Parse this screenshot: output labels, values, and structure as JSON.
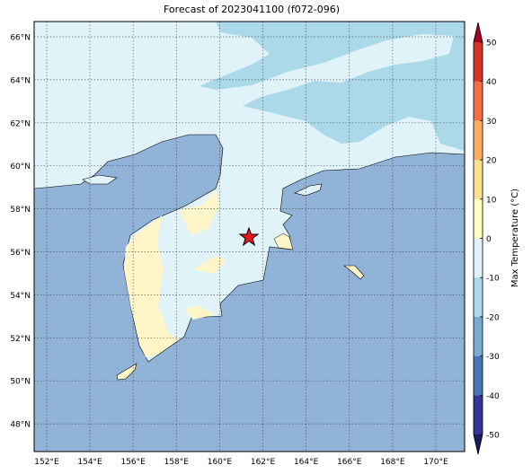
{
  "title": "Forecast of 2023041100 (f072-096)",
  "map": {
    "lat_ticks": [
      {
        "value": 48,
        "label": "48°N"
      },
      {
        "value": 50,
        "label": "50°N"
      },
      {
        "value": 52,
        "label": "52°N"
      },
      {
        "value": 54,
        "label": "54°N"
      },
      {
        "value": 56,
        "label": "56°N"
      },
      {
        "value": 58,
        "label": "58°N"
      },
      {
        "value": 60,
        "label": "60°N"
      },
      {
        "value": 62,
        "label": "62°N"
      },
      {
        "value": 64,
        "label": "64°N"
      },
      {
        "value": 66,
        "label": "66°N"
      }
    ],
    "lon_ticks": [
      {
        "value": 152,
        "label": "152°E"
      },
      {
        "value": 154,
        "label": "154°E"
      },
      {
        "value": 156,
        "label": "156°E"
      },
      {
        "value": 158,
        "label": "158°E"
      },
      {
        "value": 160,
        "label": "160°E"
      },
      {
        "value": 162,
        "label": "162°E"
      },
      {
        "value": 164,
        "label": "164°E"
      },
      {
        "value": 166,
        "label": "166°E"
      },
      {
        "value": 168,
        "label": "168°E"
      },
      {
        "value": 170,
        "label": "170°E"
      }
    ]
  },
  "colorbar": {
    "label": "Max Temperature (°C)",
    "ticks": [
      -50,
      -40,
      -30,
      -20,
      -10,
      0,
      10,
      20,
      30,
      40,
      50
    ],
    "colors": [
      "#313695",
      "#4575b4",
      "#74add1",
      "#abd9e9",
      "#e0f3f8",
      "#ffffbf",
      "#fee090",
      "#fdae61",
      "#f46d43",
      "#d73027"
    ],
    "under_color": "#1a1a5e",
    "over_color": "#a50026"
  }
}
